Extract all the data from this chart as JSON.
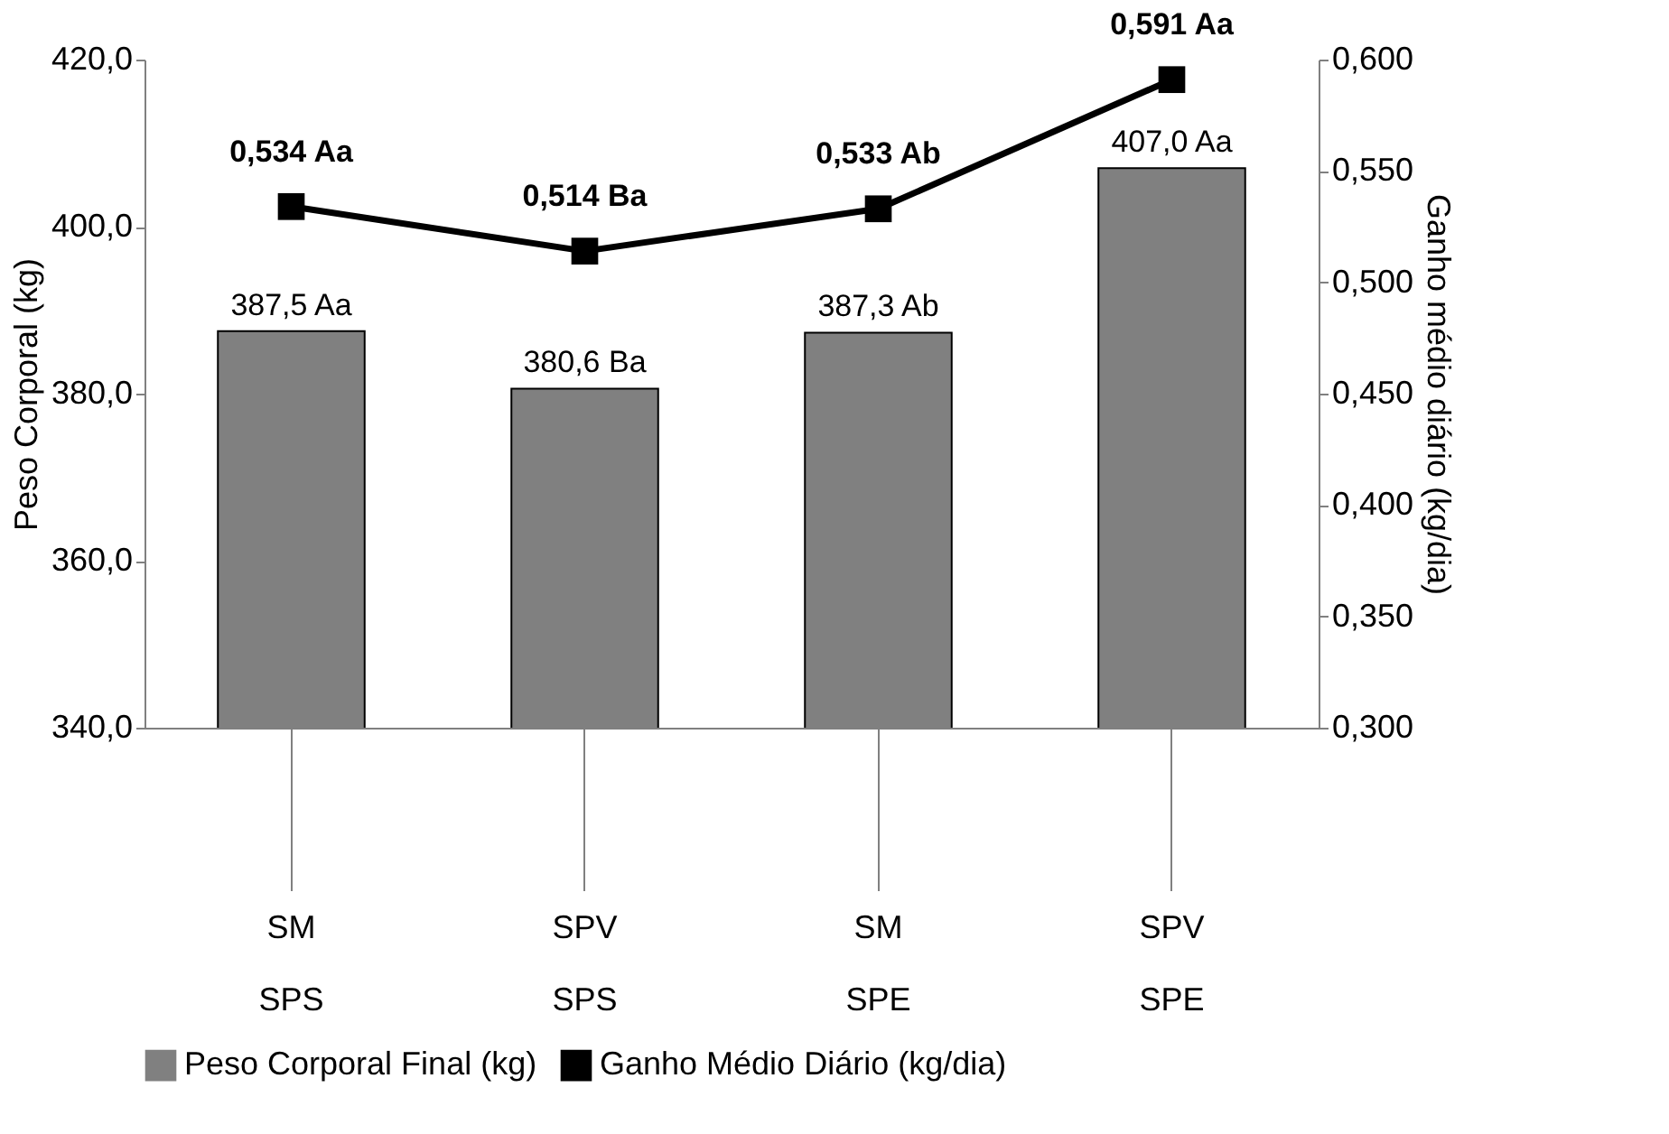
{
  "chart_data": {
    "type": "bar",
    "ylabel": "Peso Corporal (kg)",
    "y2label": "Ganho médio diário (kg/dia)",
    "categories": [
      "SM SPS",
      "SPV SPS",
      "SM SPE",
      "SPV SPE"
    ],
    "series": [
      {
        "name": "Peso Corporal Final (kg)",
        "color": "#808080",
        "values": [
          387.5,
          380.6,
          387.3,
          407.0
        ],
        "value_labels": [
          "387,5 Aa",
          "380,6 Ba",
          "387,3 Ab",
          "407,0 Aa"
        ]
      },
      {
        "name": "Ganho Médio Diário (kg/dia)",
        "type": "line",
        "axis": "y2",
        "color": "#000000",
        "marker": "square",
        "values": [
          0.534,
          0.514,
          0.533,
          0.591
        ],
        "value_labels": [
          "0,534 Aa",
          "0,514 Ba",
          "0,533 Ab",
          "0,591 Aa"
        ]
      }
    ],
    "ylim": [
      340,
      420
    ],
    "yticks": [
      {
        "value": 340,
        "label": "340,0"
      },
      {
        "value": 360,
        "label": "360,0"
      },
      {
        "value": 380,
        "label": "380,0"
      },
      {
        "value": 400,
        "label": "400,0"
      },
      {
        "value": 420,
        "label": "420,0"
      }
    ],
    "y2lim": [
      0.3,
      0.6
    ],
    "y2ticks": [
      {
        "value": 0.3,
        "label": "0,300"
      },
      {
        "value": 0.35,
        "label": "0,350"
      },
      {
        "value": 0.4,
        "label": "0,400"
      },
      {
        "value": 0.45,
        "label": "0,450"
      },
      {
        "value": 0.5,
        "label": "0,500"
      },
      {
        "value": 0.55,
        "label": "0,550"
      },
      {
        "value": 0.6,
        "label": "0,600"
      }
    ],
    "grid": false,
    "legend": "bottom"
  }
}
